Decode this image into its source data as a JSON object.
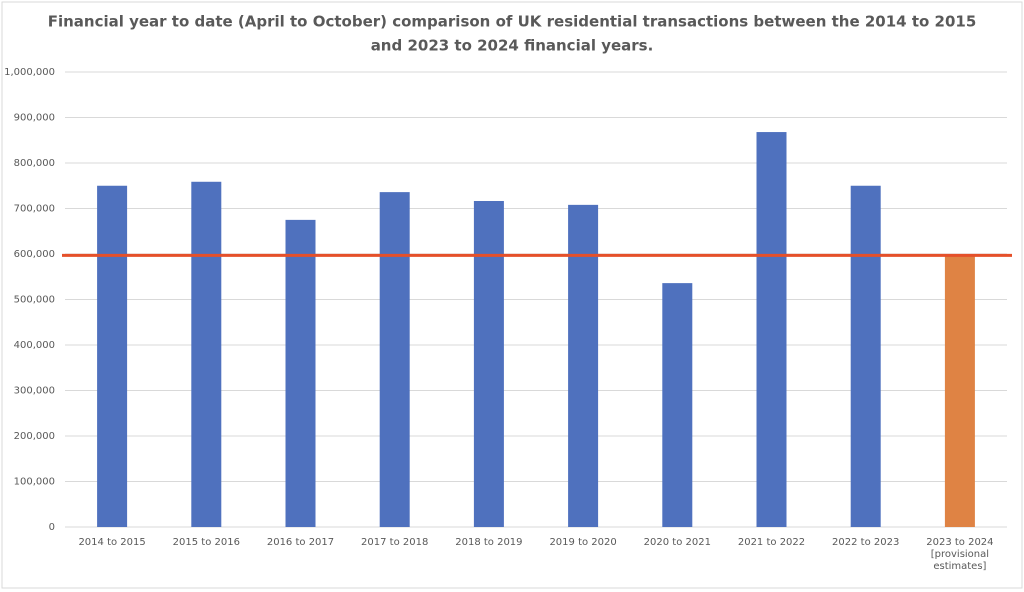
{
  "chart_data": {
    "type": "bar",
    "title": [
      "Financial year to date (April to October) comparison of UK residential transactions between the 2014 to 2015",
      "and 2023 to 2024 financial years."
    ],
    "categories": [
      "2014 to 2015",
      "2015 to 2016",
      "2016 to 2017",
      "2017 to 2018",
      "2018 to 2019",
      "2019 to 2020",
      "2020 to 2021",
      "2021 to 2022",
      "2022 to 2023",
      "2023 to 2024 [provisional estimates]"
    ],
    "values": [
      750000,
      758740,
      675000,
      736000,
      716500,
      708000,
      536000,
      868000,
      750000,
      596000
    ],
    "colors": [
      "#4f71be",
      "#4f71be",
      "#4f71be",
      "#4f71be",
      "#4f71be",
      "#4f71be",
      "#4f71be",
      "#4f71be",
      "#4f71be",
      "#df8344"
    ],
    "reference_line": {
      "value": 597000,
      "color": "#e5502a"
    },
    "ylim": [
      0,
      1000000
    ],
    "yticks": [
      0,
      {
        "value": 100000,
        "label": "100,000"
      },
      {
        "value": 200000,
        "label": "200,000"
      },
      {
        "value": 300000,
        "label": "300,000"
      },
      {
        "value": 400000,
        "label": "400,000"
      },
      {
        "value": 500000,
        "label": "500,000"
      },
      {
        "value": 600000,
        "label": "600,000"
      },
      {
        "value": 700000,
        "label": "700,000"
      },
      {
        "value": 800000,
        "label": "800,000"
      },
      {
        "value": 900000,
        "label": "900,000"
      },
      {
        "value": 1000000,
        "label": "1,000,000"
      }
    ],
    "grid": true
  }
}
